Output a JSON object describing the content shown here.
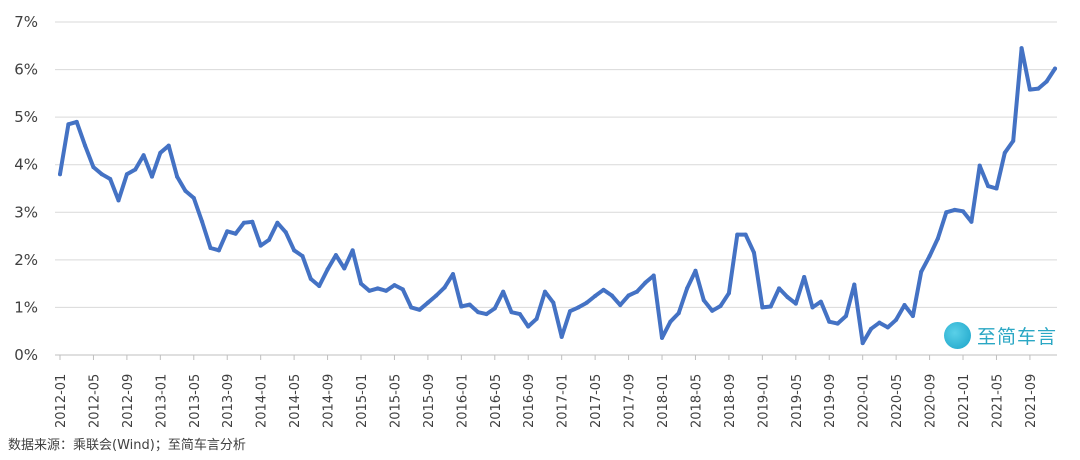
{
  "chart_data": {
    "type": "line",
    "y_ticks": [
      "0%",
      "1%",
      "2%",
      "3%",
      "4%",
      "5%",
      "6%",
      "7%"
    ],
    "ylim": [
      0,
      7
    ],
    "x_tick_labels": [
      "2012-01",
      "2012-05",
      "2012-09",
      "2013-01",
      "2013-05",
      "2013-09",
      "2014-01",
      "2014-05",
      "2014-09",
      "2015-01",
      "2015-05",
      "2015-09",
      "2016-01",
      "2016-05",
      "2016-09",
      "2017-01",
      "2017-05",
      "2017-09",
      "2018-01",
      "2018-05",
      "2018-09",
      "2019-01",
      "2019-05",
      "2019-09",
      "2020-01",
      "2020-05",
      "2020-09",
      "2021-01",
      "2021-05",
      "2021-09"
    ],
    "start": "2012-01",
    "values": [
      3.8,
      4.85,
      4.9,
      4.4,
      3.95,
      3.8,
      3.7,
      3.25,
      3.8,
      3.9,
      4.2,
      3.75,
      4.25,
      4.4,
      3.75,
      3.45,
      3.3,
      2.8,
      2.25,
      2.2,
      2.6,
      2.55,
      2.78,
      2.8,
      2.3,
      2.42,
      2.78,
      2.58,
      2.2,
      2.08,
      1.6,
      1.45,
      1.8,
      2.1,
      1.82,
      2.2,
      1.5,
      1.35,
      1.4,
      1.35,
      1.47,
      1.38,
      1.0,
      0.95,
      1.1,
      1.25,
      1.42,
      1.7,
      1.02,
      1.06,
      0.9,
      0.86,
      0.98,
      1.33,
      0.9,
      0.86,
      0.6,
      0.76,
      1.33,
      1.1,
      0.38,
      0.92,
      1.0,
      1.1,
      1.24,
      1.37,
      1.25,
      1.05,
      1.25,
      1.33,
      1.52,
      1.67,
      0.36,
      0.7,
      0.88,
      1.4,
      1.77,
      1.15,
      0.93,
      1.03,
      1.3,
      2.53,
      2.53,
      2.15,
      1.0,
      1.02,
      1.4,
      1.22,
      1.08,
      1.64,
      1.0,
      1.12,
      0.7,
      0.66,
      0.82,
      1.48,
      0.25,
      0.55,
      0.68,
      0.58,
      0.74,
      1.05,
      0.82,
      1.75,
      2.08,
      2.45,
      3.0,
      3.05,
      3.02,
      2.8,
      3.98,
      3.55,
      3.5,
      4.25,
      4.5,
      6.45,
      5.58,
      5.6,
      5.75,
      6.02
    ]
  },
  "source_note": "数据来源：乘联会(Wind)；至简车言分析",
  "brand": {
    "name": "至简车言"
  }
}
